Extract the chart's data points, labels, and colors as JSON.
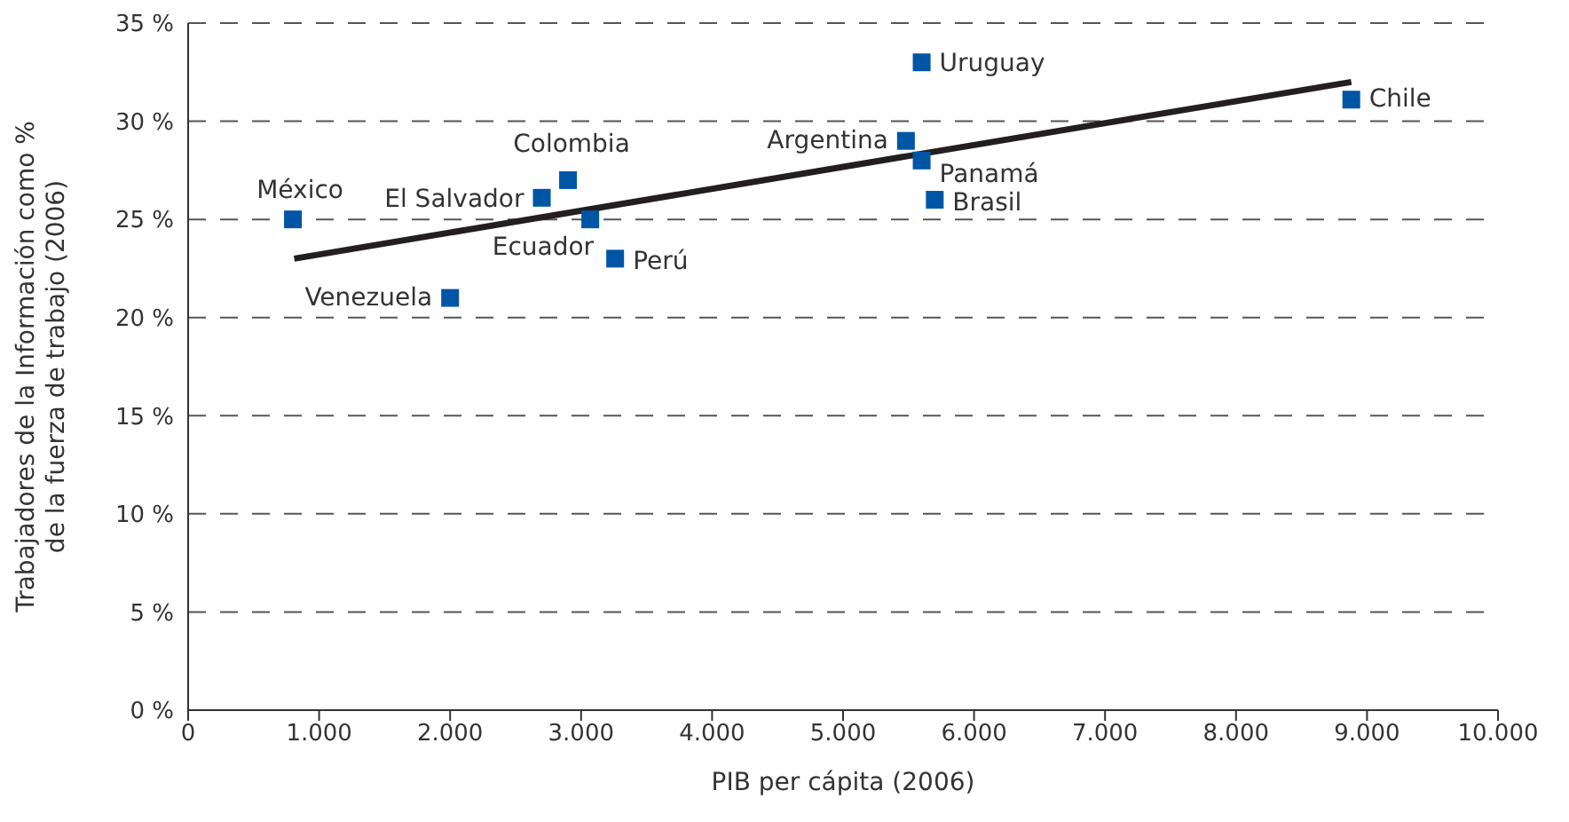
{
  "chart_data": {
    "type": "scatter",
    "xlabel": "PIB per cápita (2006)",
    "ylabel": "Trabajadores de la Información como %\nde la fuerza de trabajo (2006)",
    "x": [
      800,
      2000,
      2700,
      2900,
      3070,
      3260,
      5480,
      5600,
      5600,
      5700,
      8880
    ],
    "series": [
      {
        "color": "#0055a5",
        "marker": "square",
        "values": [
          25,
          21,
          26.1,
          27,
          25,
          23,
          29,
          33,
          28,
          26,
          31.1
        ]
      },
      {
        "type": "line",
        "color": "#231f20",
        "line_style": "solid",
        "marker": "none",
        "x": [
          810,
          8880
        ],
        "values": [
          23,
          32
        ]
      }
    ],
    "annotations": [
      {
        "text": "México",
        "x": 800,
        "y": 25
      },
      {
        "text": "Venezuela",
        "x": 2000,
        "y": 21
      },
      {
        "text": "El Salvador",
        "x": 2700,
        "y": 26.1
      },
      {
        "text": "Colombia",
        "x": 2900,
        "y": 27
      },
      {
        "text": "Ecuador",
        "x": 3070,
        "y": 25
      },
      {
        "text": "Perú",
        "x": 3260,
        "y": 23
      },
      {
        "text": "Argentina",
        "x": 5480,
        "y": 29
      },
      {
        "text": "Uruguay",
        "x": 5600,
        "y": 33
      },
      {
        "text": "Panamá",
        "x": 5600,
        "y": 28
      },
      {
        "text": "Brasil",
        "x": 5700,
        "y": 26
      },
      {
        "text": "Chile",
        "x": 8880,
        "y": 31.1
      }
    ],
    "xlim": [
      0,
      10000
    ],
    "xticks": [
      {
        "value": 0,
        "label": "0"
      },
      {
        "value": 1000,
        "label": "1.000"
      },
      {
        "value": 2000,
        "label": "2.000"
      },
      {
        "value": 3000,
        "label": "3.000"
      },
      {
        "value": 4000,
        "label": "4.000"
      },
      {
        "value": 5000,
        "label": "5.000"
      },
      {
        "value": 6000,
        "label": "6.000"
      },
      {
        "value": 7000,
        "label": "7.000"
      },
      {
        "value": 8000,
        "label": "8.000"
      },
      {
        "value": 9000,
        "label": "9.000"
      },
      {
        "value": 10000,
        "label": "10.000"
      }
    ],
    "ylim": [
      0,
      35
    ],
    "yticks": [
      {
        "value": 0,
        "label": "0 %"
      },
      {
        "value": 5,
        "label": "5 %"
      },
      {
        "value": 10,
        "label": "10 %"
      },
      {
        "value": 15,
        "label": "15 %"
      },
      {
        "value": 20,
        "label": "20 %"
      },
      {
        "value": 25,
        "label": "25 %"
      },
      {
        "value": 30,
        "label": "30 %"
      },
      {
        "value": 35,
        "label": "35 %"
      }
    ],
    "grid": "y",
    "legend": false
  }
}
